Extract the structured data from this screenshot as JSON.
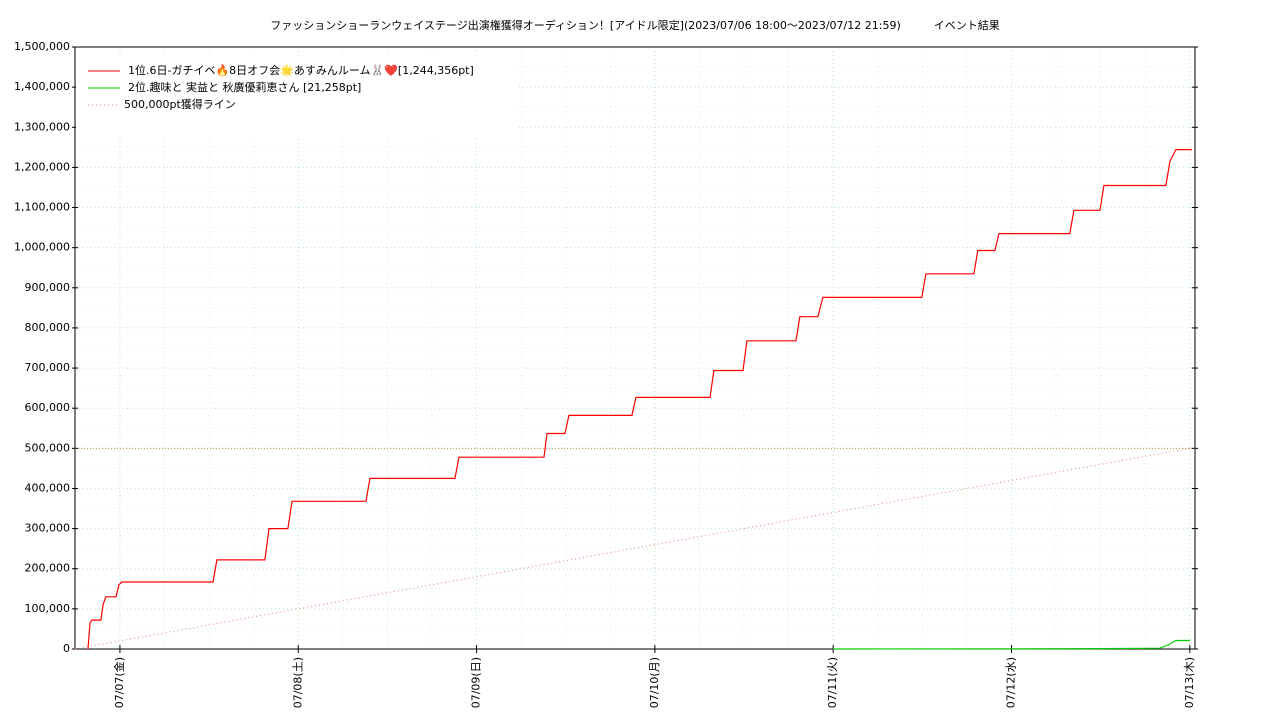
{
  "chart_data": {
    "type": "line",
    "title": "ファッションショーランウェイステージ出演権獲得オーディション！[アイドル限定](2023/07/06 18:00〜2023/07/12 21:59)　　　イベント結果",
    "xlim": [
      0.748,
      7.029
    ],
    "xticks": [
      {
        "value": 1,
        "label": "07/07(金)"
      },
      {
        "value": 2,
        "label": "07/08(土)"
      },
      {
        "value": 3,
        "label": "07/09(日)"
      },
      {
        "value": 4,
        "label": "07/10(月)"
      },
      {
        "value": 5,
        "label": "07/11(火)"
      },
      {
        "value": 6,
        "label": "07/12(水)"
      },
      {
        "value": 7,
        "label": "07/13(木)"
      }
    ],
    "ylim": [
      0,
      1500000
    ],
    "yticks": [
      0,
      {
        "value": 100000,
        "label": "100,000"
      },
      {
        "value": 200000,
        "label": "200,000"
      },
      {
        "value": 300000,
        "label": "300,000"
      },
      {
        "value": 400000,
        "label": "400,000"
      },
      {
        "value": 500000,
        "label": "500,000"
      },
      {
        "value": 600000,
        "label": "600,000"
      },
      {
        "value": 700000,
        "label": "700,000"
      },
      {
        "value": 800000,
        "label": "800,000"
      },
      {
        "value": 900000,
        "label": "900,000"
      },
      {
        "value": 1000000,
        "label": "1,000,000"
      },
      {
        "value": 1100000,
        "label": "1,100,000"
      },
      {
        "value": 1200000,
        "label": "1,200,000"
      },
      {
        "value": 1300000,
        "label": "1,300,000"
      },
      {
        "value": 1400000,
        "label": "1,400,000"
      },
      {
        "value": 1500000,
        "label": "1,500,000"
      }
    ],
    "grid": true,
    "legend": "top-left",
    "hline": 500000,
    "series": [
      {
        "name": "1位.6日-ガチイベ🔥8日オフ会🌟あすみんルーム🐰❤️[1,244,356pt]",
        "color": "#ff0000",
        "style": "solid",
        "x": [
          0.821,
          0.832,
          0.843,
          0.893,
          0.905,
          0.921,
          0.978,
          0.994,
          1.011,
          1.522,
          1.544,
          1.813,
          1.836,
          1.942,
          1.965,
          2.38,
          2.402,
          2.879,
          2.901,
          3.378,
          3.395,
          3.496,
          3.518,
          3.871,
          3.894,
          4.309,
          4.331,
          4.494,
          4.516,
          4.791,
          4.813,
          4.914,
          4.942,
          5.497,
          5.52,
          5.789,
          5.811,
          5.907,
          5.929,
          6.327,
          6.35,
          6.496,
          6.518,
          6.866,
          6.888,
          6.922,
          7.012
        ],
        "values": [
          0,
          65000,
          72000,
          72000,
          110000,
          130000,
          130000,
          160000,
          167000,
          167000,
          222000,
          222000,
          300000,
          300000,
          368000,
          368000,
          425000,
          425000,
          478000,
          478000,
          537000,
          537000,
          582000,
          582000,
          627000,
          627000,
          694000,
          694000,
          768000,
          768000,
          828000,
          828000,
          876000,
          876000,
          935000,
          935000,
          993000,
          993000,
          1035000,
          1035000,
          1093000,
          1093000,
          1155000,
          1155000,
          1215000,
          1244356,
          1244356
        ]
      },
      {
        "name": "2位.趣味と 実益と 秋廣優莉恵さん [21,258pt]",
        "color": "#00cc00",
        "style": "solid",
        "x": [
          4.999,
          6.047,
          6.496,
          6.832,
          6.877,
          6.922,
          7.001
        ],
        "values": [
          0,
          500,
          1000,
          2000,
          10000,
          21258,
          21258
        ]
      },
      {
        "name": "500,000pt獲得ライン",
        "color": "#e08080",
        "style": "dotted",
        "x": [
          0.748,
          7.001
        ],
        "values": [
          0,
          500000
        ]
      }
    ]
  }
}
